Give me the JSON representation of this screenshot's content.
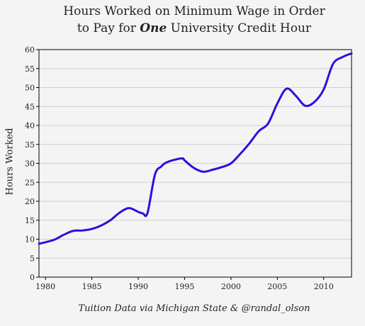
{
  "chart_data": {
    "type": "line",
    "title_line1": "Hours Worked on Minimum Wage in Order",
    "title_line2_pre": "to Pay for ",
    "title_line2_em": "One",
    "title_line2_post": " University Credit Hour",
    "xlabel": "",
    "ylabel": "Hours Worked",
    "credit": "Tuition Data via Michigan State & @randal_olson",
    "xlim": [
      1979.3,
      2013
    ],
    "ylim": [
      0,
      60
    ],
    "xticks": [
      1980,
      1985,
      1990,
      1995,
      2000,
      2005,
      2010
    ],
    "yticks": [
      0,
      5,
      10,
      15,
      20,
      25,
      30,
      35,
      40,
      45,
      50,
      55,
      60
    ],
    "grid": "horizontal",
    "line_color": "#2b0fe0",
    "series": [
      {
        "x": [
          1979.3,
          1980,
          1981,
          1982,
          1983,
          1984,
          1985,
          1986,
          1987,
          1988,
          1989,
          1990,
          1990.5,
          1991,
          1991.8,
          1992.5,
          1993,
          1994,
          1994.8,
          1995,
          1996,
          1997,
          1998,
          1999,
          2000,
          2001,
          2002,
          2003,
          2004,
          2005,
          2006,
          2007,
          2008,
          2009,
          2010,
          2011,
          2012,
          2013
        ],
        "y": [
          8.8,
          9.2,
          9.9,
          11.2,
          12.2,
          12.3,
          12.7,
          13.6,
          15.0,
          17.0,
          18.2,
          17.2,
          16.8,
          16.9,
          27.0,
          29.2,
          30.2,
          31.0,
          31.3,
          30.8,
          28.8,
          27.8,
          28.3,
          29.0,
          30.0,
          32.5,
          35.3,
          38.5,
          40.5,
          45.8,
          49.7,
          47.8,
          45.2,
          46.2,
          49.5,
          56.2,
          58.0,
          59.0
        ]
      }
    ]
  }
}
